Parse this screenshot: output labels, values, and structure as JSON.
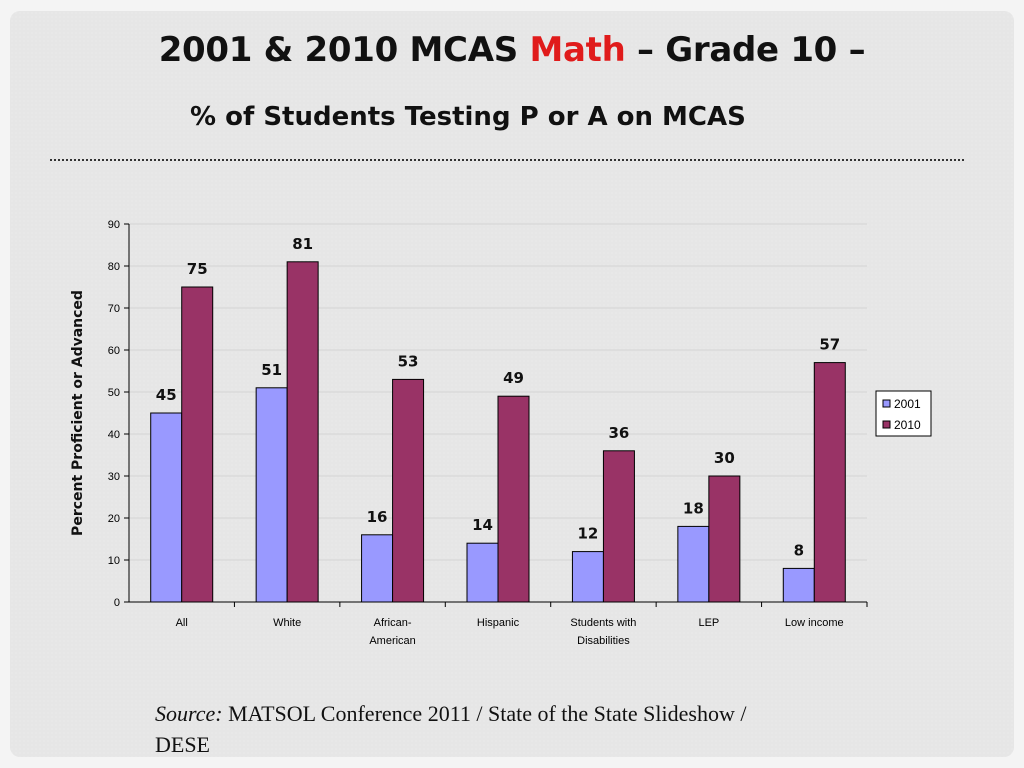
{
  "title": {
    "part1": "2001 & 2010 MCAS ",
    "highlight": "Math",
    "part2": " – Grade 10 –"
  },
  "subtitle": "% of Students Testing P or A on MCAS",
  "source": {
    "label": "Source:",
    "text": "MATSOL Conference 2011 / State of the State Slideshow / DESE"
  },
  "chart_data": {
    "type": "bar",
    "categories": [
      [
        "All"
      ],
      [
        "White"
      ],
      [
        "African-",
        "American"
      ],
      [
        "Hispanic"
      ],
      [
        "Students with",
        "Disabilities"
      ],
      [
        "LEP"
      ],
      [
        "Low income"
      ]
    ],
    "series": [
      {
        "name": "2001",
        "values": [
          45,
          51,
          16,
          14,
          12,
          18,
          8
        ],
        "color": "#9999ff"
      },
      {
        "name": "2010",
        "values": [
          75,
          81,
          53,
          49,
          36,
          30,
          57
        ],
        "color": "#993366"
      }
    ],
    "ylabel": "Percent Proficient or Advanced",
    "ylim": [
      0,
      90
    ],
    "yticks": [
      0,
      10,
      20,
      30,
      40,
      50,
      60,
      70,
      80,
      90
    ],
    "grid": true,
    "legend": "right",
    "data_labels": true
  }
}
